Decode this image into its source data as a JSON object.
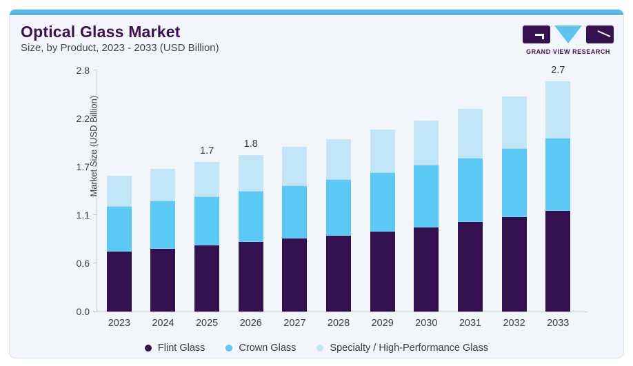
{
  "header": {
    "title": "Optical Glass Market",
    "subtitle": "Size, by Product, 2023 - 2033 (USD Billion)",
    "logo_text": "GRAND VIEW RESEARCH"
  },
  "colors": {
    "top_accent_bar": "#57b7e3",
    "card_background": "#f2f6fa",
    "card_border": "#dbe2e9",
    "title_purple": "#3e1053",
    "flint_glass": "#331150",
    "crown_glass": "#5bc9f3",
    "specialty_glass": "#c1e6f8",
    "axis_line": "#c6cbd4",
    "text": "#3a3a44"
  },
  "chart_data": {
    "type": "bar",
    "stacked": true,
    "title": "Optical Glass Market",
    "subtitle": "Size, by Product, 2023 - 2033 (USD Billion)",
    "xlabel": "",
    "ylabel": "Market Size (USD Billion)",
    "categories": [
      "2023",
      "2024",
      "2025",
      "2026",
      "2027",
      "2028",
      "2029",
      "2030",
      "2031",
      "2032",
      "2033"
    ],
    "series": [
      {
        "name": "Flint Glass",
        "color": "#331150",
        "values": [
          0.7,
          0.73,
          0.77,
          0.81,
          0.85,
          0.88,
          0.93,
          0.98,
          1.04,
          1.1,
          1.17
        ]
      },
      {
        "name": "Crown Glass",
        "color": "#5bc9f3",
        "values": [
          0.52,
          0.55,
          0.56,
          0.58,
          0.61,
          0.65,
          0.68,
          0.72,
          0.74,
          0.79,
          0.84
        ]
      },
      {
        "name": "Specialty / High-Performance Glass",
        "color": "#c1e6f8",
        "values": [
          0.36,
          0.38,
          0.41,
          0.43,
          0.45,
          0.47,
          0.5,
          0.52,
          0.57,
          0.61,
          0.66
        ]
      }
    ],
    "totals": [
      1.58,
      1.66,
      1.74,
      1.82,
      1.91,
      2.0,
      2.11,
      2.22,
      2.35,
      2.5,
      2.67
    ],
    "visible_total_labels": {
      "2025": "1.7",
      "2026": "1.8",
      "2033": "2.7"
    },
    "ylim": [
      0,
      2.8
    ],
    "yticks": [
      "0.0",
      "0.6",
      "1.1",
      "1.7",
      "2.2",
      "2.8"
    ],
    "grid": false,
    "legend_position": "bottom"
  }
}
